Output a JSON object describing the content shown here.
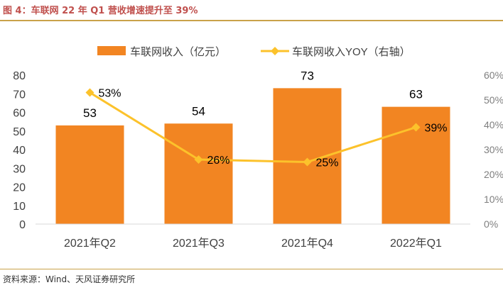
{
  "figure": {
    "title": "图 4：车联网 22 年 Q1 营收增速提升至 39%",
    "source": "资料来源：Wind、天风证券研究所"
  },
  "colors": {
    "bar": "#f28522",
    "line": "#fcc22b",
    "title": "#c0504d",
    "rule": "#c9a24a",
    "axis_text": "#404040",
    "axis_line": "#d9d9d9"
  },
  "chart_data": {
    "type": "bar",
    "categories": [
      "2021年Q2",
      "2021年Q3",
      "2021年Q4",
      "2022年Q1"
    ],
    "series": [
      {
        "name": "车联网收入（亿元）",
        "type": "bar",
        "axis": "left",
        "values": [
          53,
          54,
          73,
          63
        ],
        "labels": [
          "53",
          "54",
          "73",
          "63"
        ]
      },
      {
        "name": "车联网收入YOY（右轴）",
        "type": "line",
        "axis": "right",
        "marker": "diamond",
        "values": [
          0.53,
          0.26,
          0.25,
          0.39
        ],
        "labels": [
          "53%",
          "26%",
          "25%",
          "39%"
        ]
      }
    ],
    "y_left": {
      "lim": [
        0,
        80
      ],
      "ticks": [
        "0",
        "10",
        "20",
        "30",
        "40",
        "50",
        "60",
        "70",
        "80"
      ]
    },
    "y_right": {
      "lim": [
        0,
        0.6
      ],
      "ticks": [
        "0%",
        "10%",
        "20%",
        "30%",
        "40%",
        "50%",
        "60%"
      ]
    },
    "grid": false,
    "legend_position": "top-center"
  }
}
